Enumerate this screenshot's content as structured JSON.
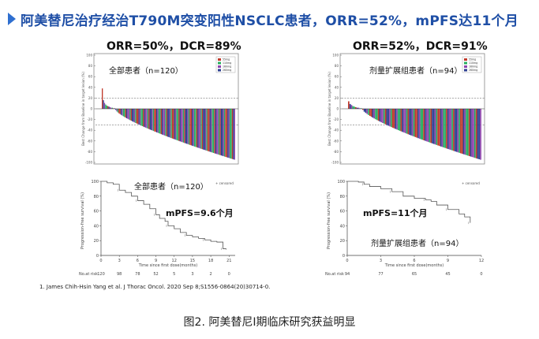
{
  "header": {
    "title": "阿美替尼治疗经治T790M突变阳性NSCLC患者，ORR=52%，mPFS达11个月",
    "accent_color": "#1f4fa6",
    "marker_icon": "play-triangle-icon"
  },
  "left_panel": {
    "stats": "ORR=50%，DCR=89%",
    "waterfall": {
      "group_label": "全部患者（n=120）",
      "ylabel": "Best Change from Baseline in target lesion (%)",
      "legend": [
        "55mg",
        "110mg",
        "160mg",
        "260mg"
      ]
    },
    "km": {
      "group_label": "全部患者（n=120）",
      "mpfs_label": "mPFS=9.6个月",
      "ylabel": "Progression-free survival (%)",
      "xlabel": "Time since first dose(months)",
      "censored_label": "+ censored",
      "at_risk_label": "No.at risk",
      "at_risk": [
        "120",
        "98",
        "78",
        "52",
        "5",
        "3",
        "2",
        "0"
      ]
    }
  },
  "right_panel": {
    "stats": "ORR=52%，DCR=91%",
    "waterfall": {
      "group_label": "剂量扩展组患者（n=94）",
      "ylabel": "Best Change from Baseline in target lesion (%)",
      "legend": [
        "55mg",
        "110mg",
        "160mg",
        "260mg"
      ]
    },
    "km": {
      "group_label": "剂量扩展组患者（n=94）",
      "mpfs_label": "mPFS=11个月",
      "ylabel": "Progression-free survival (%)",
      "xlabel": "Time since first dose(months)",
      "censored_label": "+ censored",
      "at_risk_label": "No.at risk",
      "at_risk": [
        "94",
        "77",
        "65",
        "45",
        "0"
      ]
    }
  },
  "reference": "1.  James Chih-Hsin Yang et al. J Thorac Oncol. 2020 Sep 8;S1556-0864(20)30714-0.",
  "caption": "图2. 阿美替尼I期临床研究获益明显",
  "chart_data": [
    {
      "type": "bar",
      "subtype": "waterfall",
      "title": "全部患者（n=120）",
      "ylabel": "Best Change from Baseline in target lesion (%)",
      "ylim": [
        -100,
        100
      ],
      "yticks": [
        -100,
        -80,
        -60,
        -40,
        -20,
        0,
        20,
        40,
        60,
        80,
        100
      ],
      "reference_lines": [
        20,
        -30
      ],
      "n_patients": 120,
      "first_values": [
        38,
        16,
        11,
        8,
        6,
        5,
        4,
        3,
        2,
        2,
        1,
        1
      ],
      "min_value": -95,
      "series_colors": [
        "#c0392b",
        "#27ae60",
        "#8e44ad",
        "#2c3e91"
      ],
      "legend": [
        "55mg",
        "110mg",
        "160mg",
        "260mg"
      ]
    },
    {
      "type": "line",
      "subtype": "kaplan-meier",
      "title": "全部患者（n=120）",
      "ylabel": "Progression-free survival (%)",
      "xlabel": "Time since first dose(months)",
      "ylim": [
        0,
        100
      ],
      "xlim": [
        0,
        22
      ],
      "xticks": [
        0,
        3,
        6,
        9,
        12,
        15,
        18,
        21
      ],
      "yticks": [
        0,
        20,
        40,
        60,
        80,
        100
      ],
      "median_pfs_months": 9.6,
      "x": [
        0,
        1,
        2,
        3,
        4,
        5,
        6,
        7,
        8,
        9,
        9.6,
        10.5,
        11,
        12,
        13,
        14,
        15,
        16,
        17,
        18,
        19,
        20,
        20.5
      ],
      "y": [
        100,
        98,
        96,
        88,
        85,
        80,
        74,
        69,
        63,
        55,
        50,
        46,
        40,
        36,
        31,
        27,
        25,
        23,
        21,
        19,
        18,
        9,
        8
      ]
    },
    {
      "type": "bar",
      "subtype": "waterfall",
      "title": "剂量扩展组患者（n=94）",
      "ylabel": "Best Change from Baseline in target lesion (%)",
      "ylim": [
        -100,
        100
      ],
      "yticks": [
        -100,
        -80,
        -60,
        -40,
        -20,
        0,
        20,
        40,
        60,
        80,
        100
      ],
      "reference_lines": [
        20,
        -30
      ],
      "n_patients": 94,
      "first_values": [
        14,
        9,
        7,
        5,
        4,
        3,
        2,
        2,
        1,
        1
      ],
      "min_value": -95,
      "series_colors": [
        "#c0392b",
        "#27ae60",
        "#8e44ad",
        "#2c3e91"
      ],
      "legend": [
        "55mg",
        "110mg",
        "160mg",
        "260mg"
      ]
    },
    {
      "type": "line",
      "subtype": "kaplan-meier",
      "title": "剂量扩展组患者（n=94）",
      "ylabel": "Progression-free survival (%)",
      "xlabel": "Time since first dose(months)",
      "ylim": [
        0,
        100
      ],
      "xlim": [
        0,
        12
      ],
      "xticks": [
        0,
        3,
        6,
        9,
        12
      ],
      "yticks": [
        0,
        20,
        40,
        60,
        80,
        100
      ],
      "median_pfs_months": 11,
      "x": [
        0,
        0.5,
        1,
        1.5,
        2,
        3,
        4,
        5,
        6,
        7,
        7.5,
        8,
        9,
        10,
        10.5,
        11
      ],
      "y": [
        100,
        100,
        99,
        96,
        93,
        90,
        86,
        80,
        77,
        75,
        73,
        68,
        62,
        56,
        52,
        44
      ]
    }
  ]
}
